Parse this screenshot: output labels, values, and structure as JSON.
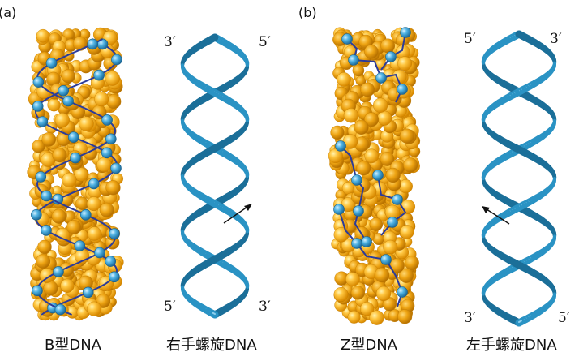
{
  "panels": [
    {
      "label": "(a)",
      "space_filling_caption": "B型DNA",
      "ribbon_caption": "右手螺旋DNA",
      "ribbon_ends": {
        "top_left": "3′",
        "top_right": "5′",
        "bottom_left": "5′",
        "bottom_right": "3′"
      },
      "handedness": "right"
    },
    {
      "label": "(b)",
      "space_filling_caption": "Z型DNA",
      "ribbon_caption": "左手螺旋DNA",
      "ribbon_ends": {
        "top_left": "5′",
        "top_right": "3′",
        "bottom_left": "3′",
        "bottom_right": "5′"
      },
      "handedness": "left"
    }
  ],
  "colors": {
    "ribbon": "#2a93c4",
    "ribbon_dark": "#1b6f99",
    "ribbon_light": "#8fd0ee",
    "atom": "#f0a20e",
    "atom_light": "#ffd45a",
    "atom_dark": "#c97f00",
    "phosphate": "#3a9fd2",
    "backbone_line": "#2b3b9a",
    "arrow": "#111111",
    "text": "#111111"
  }
}
